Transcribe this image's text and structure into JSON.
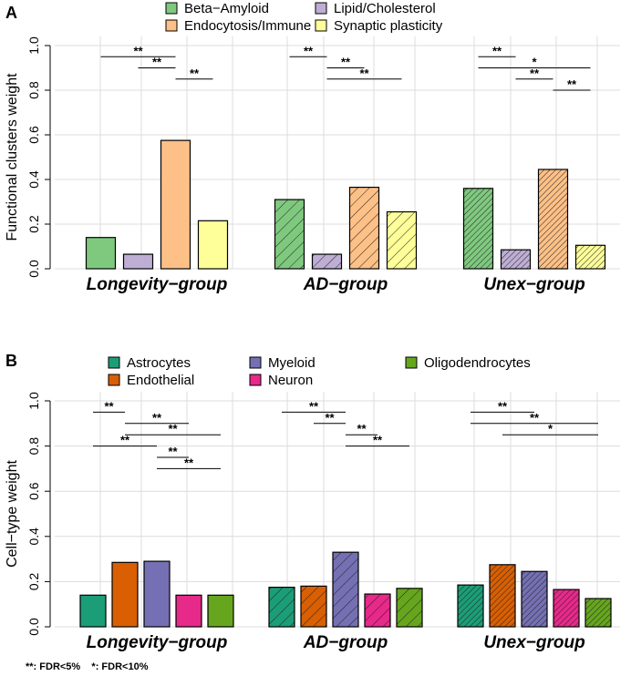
{
  "footnote": "**: FDR<5%    *: FDR<10%",
  "chart_data": [
    {
      "type": "bar",
      "panel_label": "A",
      "ylabel": "Functional clusters weight",
      "ylim": [
        0,
        1.0
      ],
      "yticks": [
        "0.0",
        "0.2",
        "0.4",
        "0.6",
        "0.8",
        "1.0"
      ],
      "grid": true,
      "categories": [
        "Longevity−group",
        "AD−group",
        "Unex−group"
      ],
      "category_hatch": [
        "none",
        "wide",
        "dense"
      ],
      "series": [
        {
          "name": "Beta−Amyloid",
          "color": "#7fc97f",
          "values": [
            0.14,
            0.31,
            0.36
          ]
        },
        {
          "name": "Lipid/Cholesterol",
          "color": "#beaed4",
          "values": [
            0.065,
            0.065,
            0.085
          ]
        },
        {
          "name": "Endocytosis/Immune",
          "color": "#fdc086",
          "values": [
            0.575,
            0.365,
            0.445
          ]
        },
        {
          "name": "Synaptic plasticity",
          "color": "#ffff99",
          "values": [
            0.215,
            0.255,
            0.105
          ]
        }
      ],
      "legend_order": [
        0,
        2,
        1,
        3
      ],
      "significance": [
        {
          "group": 0,
          "from": 0,
          "to": 2,
          "y": 0.95,
          "label": "**"
        },
        {
          "group": 0,
          "from": 1,
          "to": 2,
          "y": 0.9,
          "label": "**"
        },
        {
          "group": 0,
          "from": 2,
          "to": 3,
          "y": 0.85,
          "label": "**"
        },
        {
          "group": 1,
          "from": 0,
          "to": 1,
          "y": 0.95,
          "label": "**"
        },
        {
          "group": 1,
          "from": 1,
          "to": 2,
          "y": 0.9,
          "label": "**"
        },
        {
          "group": 1,
          "from": 1,
          "to": 3,
          "y": 0.85,
          "label": "**"
        },
        {
          "group": 2,
          "from": 0,
          "to": 1,
          "y": 0.95,
          "label": "**"
        },
        {
          "group": 2,
          "from": 0,
          "to": 3,
          "y": 0.9,
          "label": "*"
        },
        {
          "group": 2,
          "from": 1,
          "to": 2,
          "y": 0.85,
          "label": "**"
        },
        {
          "group": 2,
          "from": 2,
          "to": 3,
          "y": 0.8,
          "label": "**"
        }
      ]
    },
    {
      "type": "bar",
      "panel_label": "B",
      "ylabel": "Cell−type weight",
      "ylim": [
        0,
        1.0
      ],
      "yticks": [
        "0.0",
        "0.2",
        "0.4",
        "0.6",
        "0.8",
        "1.0"
      ],
      "grid": true,
      "categories": [
        "Longevity−group",
        "AD−group",
        "Unex−group"
      ],
      "category_hatch": [
        "none",
        "wide",
        "dense"
      ],
      "series": [
        {
          "name": "Astrocytes",
          "color": "#1b9e77",
          "values": [
            0.14,
            0.175,
            0.185
          ]
        },
        {
          "name": "Endothelial",
          "color": "#d95f02",
          "values": [
            0.285,
            0.18,
            0.275
          ]
        },
        {
          "name": "Myeloid",
          "color": "#7570b3",
          "values": [
            0.29,
            0.33,
            0.245
          ]
        },
        {
          "name": "Neuron",
          "color": "#e7298a",
          "values": [
            0.14,
            0.145,
            0.165
          ]
        },
        {
          "name": "Oligodendrocytes",
          "color": "#66a61e",
          "values": [
            0.14,
            0.17,
            0.125
          ]
        }
      ],
      "legend_order": [
        0,
        1,
        2,
        3,
        4
      ],
      "significance": [
        {
          "group": 0,
          "from": 0,
          "to": 1,
          "y": 0.95,
          "label": "**"
        },
        {
          "group": 0,
          "from": 1,
          "to": 3,
          "y": 0.9,
          "label": "**"
        },
        {
          "group": 0,
          "from": 1,
          "to": 4,
          "y": 0.85,
          "label": "**"
        },
        {
          "group": 0,
          "from": 0,
          "to": 2,
          "y": 0.8,
          "label": "**"
        },
        {
          "group": 0,
          "from": 2,
          "to": 3,
          "y": 0.75,
          "label": "**"
        },
        {
          "group": 0,
          "from": 2,
          "to": 4,
          "y": 0.7,
          "label": "**"
        },
        {
          "group": 1,
          "from": 0,
          "to": 2,
          "y": 0.95,
          "label": "**"
        },
        {
          "group": 1,
          "from": 1,
          "to": 2,
          "y": 0.9,
          "label": "**"
        },
        {
          "group": 1,
          "from": 2,
          "to": 3,
          "y": 0.85,
          "label": "**"
        },
        {
          "group": 1,
          "from": 2,
          "to": 4,
          "y": 0.8,
          "label": "**"
        },
        {
          "group": 2,
          "from": 0,
          "to": 2,
          "y": 0.95,
          "label": "**"
        },
        {
          "group": 2,
          "from": 0,
          "to": 4,
          "y": 0.9,
          "label": "**"
        },
        {
          "group": 2,
          "from": 1,
          "to": 4,
          "y": 0.85,
          "label": "*"
        }
      ]
    }
  ]
}
